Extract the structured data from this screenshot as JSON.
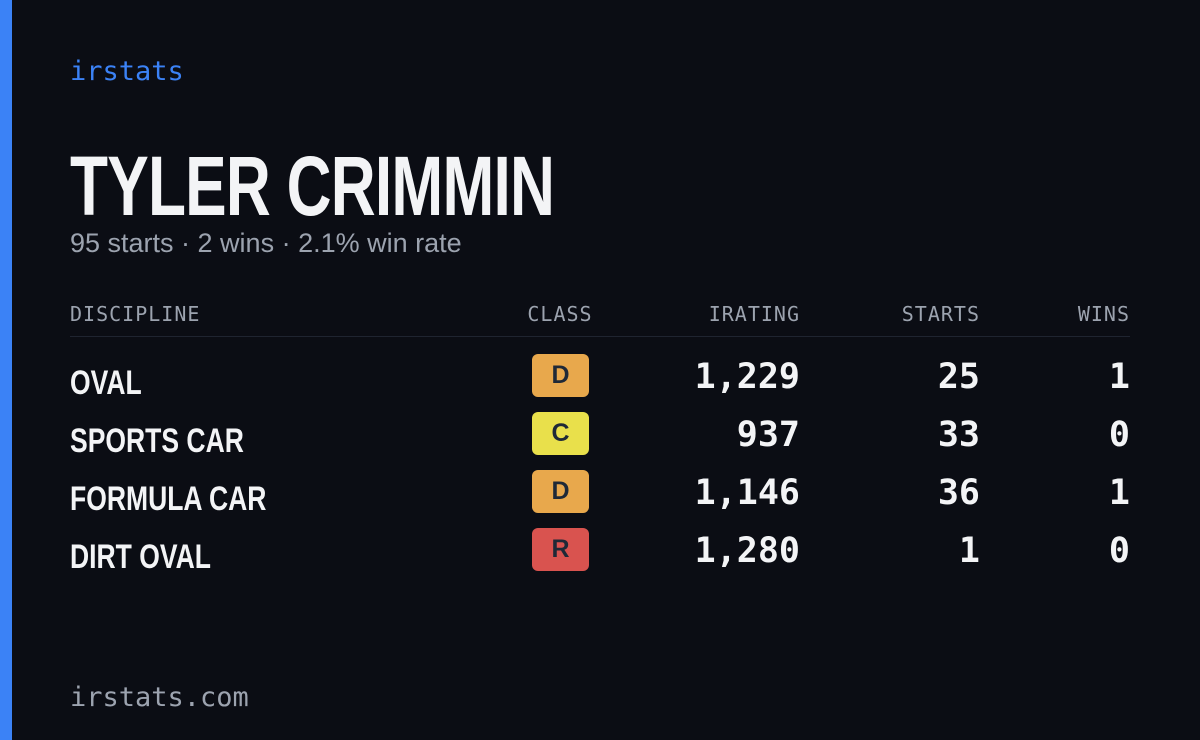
{
  "brand": "irstats",
  "header": {
    "title": "TYLER CRIMMIN",
    "subtitle": "95 starts · 2 wins · 2.1% win rate"
  },
  "table": {
    "columns": [
      "DISCIPLINE",
      "CLASS",
      "IRATING",
      "STARTS",
      "WINS"
    ],
    "rows": [
      {
        "discipline": "OVAL",
        "class": "D",
        "class_color": "#e8a84c",
        "irating": "1,229",
        "starts": "25",
        "wins": "1"
      },
      {
        "discipline": "SPORTS CAR",
        "class": "C",
        "class_color": "#e9e04b",
        "irating": "937",
        "starts": "33",
        "wins": "0"
      },
      {
        "discipline": "FORMULA CAR",
        "class": "D",
        "class_color": "#e8a84c",
        "irating": "1,146",
        "starts": "36",
        "wins": "1"
      },
      {
        "discipline": "DIRT OVAL",
        "class": "R",
        "class_color": "#d9534f",
        "irating": "1,280",
        "starts": "1",
        "wins": "0"
      }
    ]
  },
  "footer": "irstats.com"
}
